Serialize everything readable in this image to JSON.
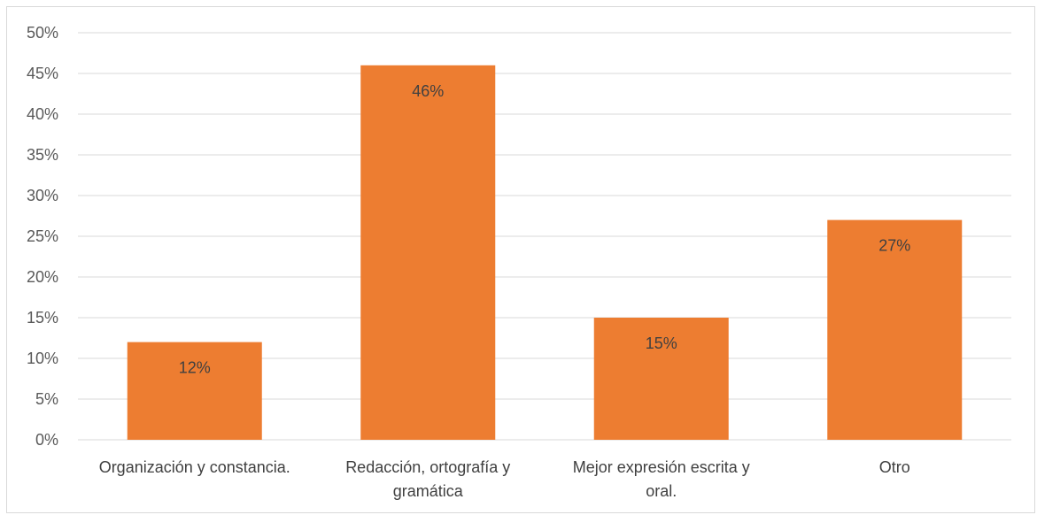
{
  "chart_data": {
    "type": "bar",
    "title": "",
    "xlabel": "",
    "ylabel": "",
    "categories": [
      [
        "Organización y constancia."
      ],
      [
        "Redacción, ortografía y",
        "gramática"
      ],
      [
        "Mejor expresión escrita y",
        "oral."
      ],
      [
        "Otro"
      ]
    ],
    "values": [
      12,
      46,
      15,
      27
    ],
    "data_labels": [
      "12%",
      "46%",
      "15%",
      "27%"
    ],
    "ylim": [
      0,
      50
    ],
    "yticks": [
      "0%",
      "5%",
      "10%",
      "15%",
      "20%",
      "25%",
      "30%",
      "35%",
      "40%",
      "45%",
      "50%"
    ],
    "grid": true,
    "legend": "none",
    "bar_color": "#ED7D31",
    "grid_color": "#d9d9d9"
  }
}
